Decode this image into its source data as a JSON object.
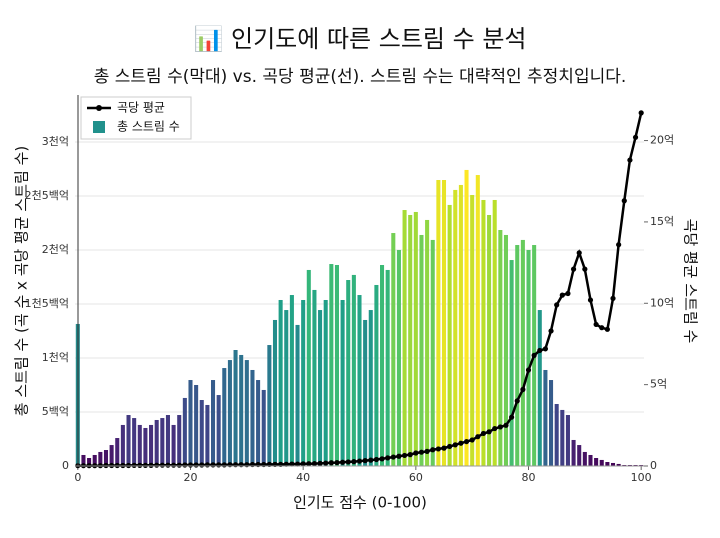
{
  "chart_data": {
    "type": "bar_line",
    "title": "📊 인기도에 따른 스트림 수 분석",
    "subtitle": "총 스트림 수(막대) vs. 곡당 평균(선). 스트림 수는 대략적인 추정치입니다.",
    "xlabel": "인기도 점수 (0-100)",
    "ylabel": "총 스트림 수 (곡 수 x 곡당 평균 스트림 수)",
    "y2label": "곡당 평균 스트림 수",
    "x": [
      0,
      1,
      2,
      3,
      4,
      5,
      6,
      7,
      8,
      9,
      10,
      11,
      12,
      13,
      14,
      15,
      16,
      17,
      18,
      19,
      20,
      21,
      22,
      23,
      24,
      25,
      26,
      27,
      28,
      29,
      30,
      31,
      32,
      33,
      34,
      35,
      36,
      37,
      38,
      39,
      40,
      41,
      42,
      43,
      44,
      45,
      46,
      47,
      48,
      49,
      50,
      51,
      52,
      53,
      54,
      55,
      56,
      57,
      58,
      59,
      60,
      61,
      62,
      63,
      64,
      65,
      66,
      67,
      68,
      69,
      70,
      71,
      72,
      73,
      74,
      75,
      76,
      77,
      78,
      79,
      80,
      81,
      82,
      83,
      84,
      85,
      86,
      87,
      88,
      89,
      90,
      91,
      92,
      93,
      94,
      95,
      96,
      97,
      98,
      99,
      100
    ],
    "series": [
      {
        "name": "총 스트림 수",
        "kind": "bar",
        "colormap": "viridis",
        "legend_color": "#21918c",
        "values": [
          1315,
          102,
          74,
          102,
          130,
          148,
          194,
          259,
          380,
          472,
          444,
          380,
          352,
          380,
          426,
          444,
          472,
          380,
          472,
          630,
          796,
          750,
          611,
          565,
          796,
          657,
          907,
          981,
          1074,
          1028,
          981,
          889,
          796,
          704,
          1120,
          1352,
          1537,
          1444,
          1583,
          1306,
          1537,
          1815,
          1630,
          1444,
          1537,
          1870,
          1861,
          1537,
          1722,
          1769,
          1583,
          1352,
          1444,
          1676,
          1861,
          1815,
          2157,
          2000,
          2370,
          2324,
          2352,
          2139,
          2278,
          2093,
          2648,
          2648,
          2417,
          2556,
          2602,
          2741,
          2509,
          2694,
          2463,
          2324,
          2463,
          2185,
          2139,
          1907,
          2046,
          2093,
          2000,
          2046,
          1444,
          889,
          796,
          574,
          519,
          472,
          241,
          194,
          130,
          102,
          74,
          56,
          37,
          28,
          19,
          9,
          9,
          9,
          9
        ]
      },
      {
        "name": "곡당 평균",
        "kind": "line",
        "axis": "y2",
        "color": "#000000",
        "values": [
          0.02,
          0.02,
          0.02,
          0.02,
          0.02,
          0.03,
          0.03,
          0.03,
          0.03,
          0.03,
          0.04,
          0.04,
          0.04,
          0.04,
          0.05,
          0.05,
          0.05,
          0.05,
          0.05,
          0.06,
          0.06,
          0.06,
          0.06,
          0.07,
          0.07,
          0.07,
          0.07,
          0.08,
          0.08,
          0.08,
          0.08,
          0.09,
          0.09,
          0.09,
          0.1,
          0.1,
          0.1,
          0.11,
          0.12,
          0.12,
          0.13,
          0.14,
          0.15,
          0.16,
          0.18,
          0.2,
          0.21,
          0.23,
          0.25,
          0.27,
          0.3,
          0.33,
          0.36,
          0.4,
          0.44,
          0.5,
          0.55,
          0.6,
          0.65,
          0.7,
          0.8,
          0.85,
          0.9,
          1.0,
          1.05,
          1.1,
          1.2,
          1.3,
          1.4,
          1.5,
          1.6,
          1.8,
          2.0,
          2.1,
          2.3,
          2.4,
          2.5,
          3.0,
          4.0,
          4.7,
          5.9,
          6.8,
          7.1,
          7.2,
          8.3,
          9.9,
          10.5,
          10.6,
          12.1,
          13.1,
          12.1,
          10.2,
          8.7,
          8.5,
          8.4,
          10.3,
          13.6,
          16.3,
          18.8,
          20.2,
          21.7
        ]
      }
    ],
    "xlim": [
      -0.5,
      100.5
    ],
    "xticks": [
      0,
      20,
      40,
      60,
      80,
      100
    ],
    "ylim": [
      0,
      3435
    ],
    "yticks": [
      0,
      {
        "value": 500,
        "label": "5백억"
      },
      {
        "value": 1000,
        "label": "1천억"
      },
      {
        "value": 1500,
        "label": "1천5백억"
      },
      {
        "value": 2000,
        "label": "2천억"
      },
      {
        "value": 2500,
        "label": "2천5백억"
      },
      {
        "value": 3000,
        "label": "3천억"
      }
    ],
    "y2lim": [
      0,
      22.8
    ],
    "y2ticks": [
      0,
      {
        "value": 5,
        "label": "5억"
      },
      {
        "value": 10,
        "label": "10억"
      },
      {
        "value": 15,
        "label": "15억"
      },
      {
        "value": 20,
        "label": "20억"
      }
    ],
    "grid": true,
    "legend": "upper left"
  }
}
